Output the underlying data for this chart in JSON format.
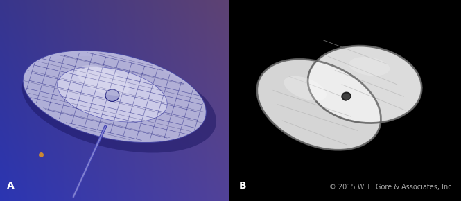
{
  "fig_width": 6.65,
  "fig_height": 2.9,
  "dpi": 100,
  "panel_a_bg": "#3a3580",
  "panel_b_bg": "#000000",
  "label_a": "A",
  "label_b": "B",
  "copyright_text": "© 2015 W. L. Gore & Associates, Inc.",
  "label_color": "#ffffff",
  "label_fontsize": 10,
  "copyright_fontsize": 7,
  "divider_color": "#1a1a2e",
  "border_color": "#000000"
}
